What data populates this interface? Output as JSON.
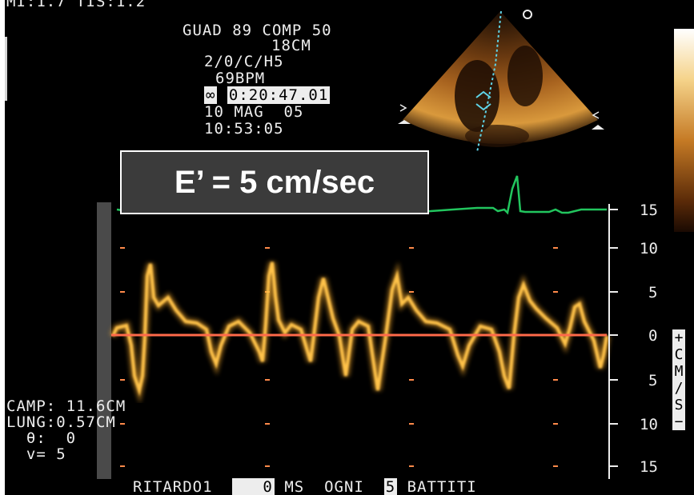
{
  "header": {
    "line0": "MI:1.7 TIS:1.2",
    "line1": "GUAD 89 COMP 50",
    "line2": "18CM",
    "line3": "2/0/C/H5",
    "line4": "69BPM",
    "timer_icon": "loop-icon",
    "timer": "0:20:47.01",
    "date": "10 MAG  05",
    "time": "10:53:05"
  },
  "annotation": {
    "label": "E’ = 5 cm/sec"
  },
  "measurements": {
    "camp": "CAMP: 11.6CM",
    "lung": "LUNG:0.57CM",
    "theta": "  θ:  0",
    "v": "  v= 5"
  },
  "footer": {
    "ritardo_label": "RITARDO1",
    "ritardo_value": "0",
    "ms": "MS",
    "ogni_label": "OGNI",
    "ogni_value": "5",
    "battiti": "BATTITI"
  },
  "scale": {
    "ticks": [
      "15",
      "10",
      "5",
      "0",
      "5",
      "10",
      "15"
    ],
    "unit": [
      "+",
      "C",
      "M",
      "/",
      "S",
      "−"
    ]
  },
  "sector_marker": "o",
  "colors": {
    "doppler": "#ffb02e",
    "baseline": "#ff6a4a",
    "ecg": "#22c55e",
    "scan_line": "#5fd4e8",
    "text": "#ededed"
  }
}
